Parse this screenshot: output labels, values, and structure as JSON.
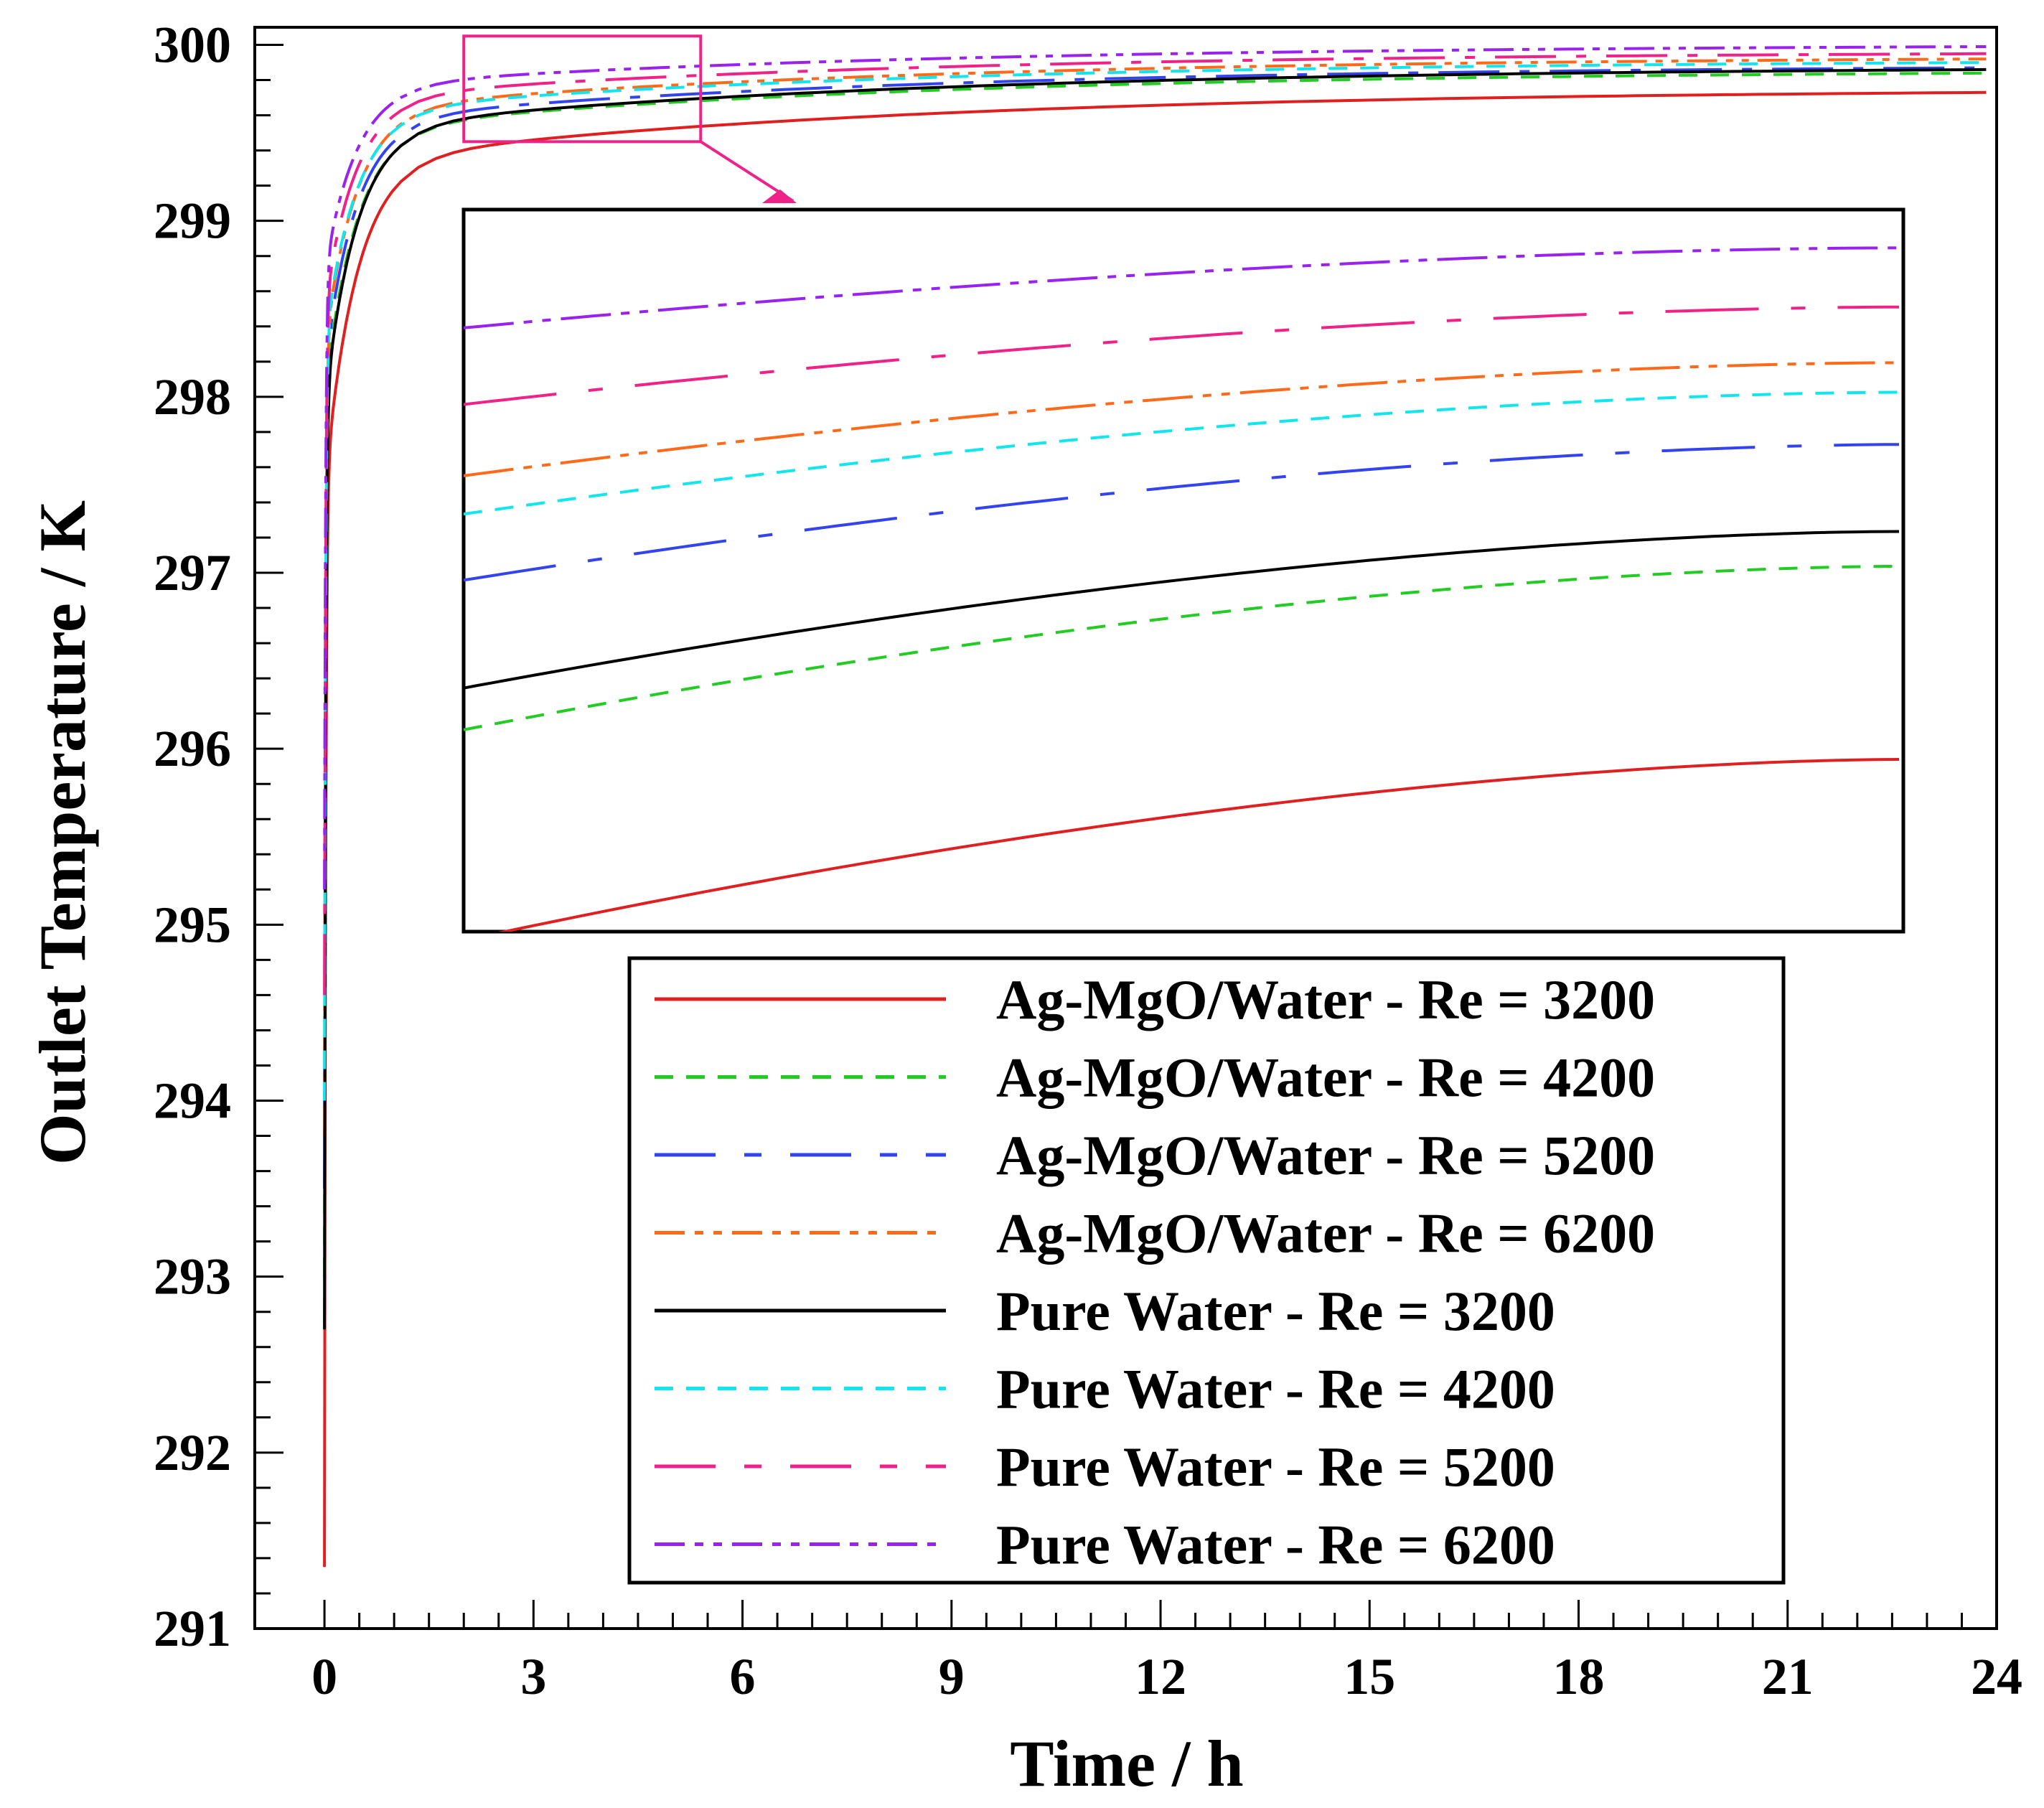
{
  "chart_data": {
    "type": "line",
    "title": "",
    "xlabel": "Time / h",
    "ylabel": "Outlet Temperature / K",
    "xlim": [
      -1.0,
      24
    ],
    "ylim": [
      291,
      300.1
    ],
    "xticks": [
      0,
      3,
      6,
      9,
      12,
      15,
      18,
      21,
      24
    ],
    "xtick_labels": [
      "0",
      "3",
      "6",
      "9",
      "12",
      "15",
      "18",
      "21",
      "24"
    ],
    "yticks": [
      291,
      292,
      293,
      294,
      295,
      296,
      297,
      298,
      299,
      300
    ],
    "ytick_labels": [
      "291",
      "292",
      "293",
      "294",
      "295",
      "296",
      "297",
      "298",
      "299",
      "300"
    ],
    "grid": false,
    "legend_position": "bottom-right",
    "series": [
      {
        "name": "Ag-MgO/Water - Re = 3200",
        "color": "#e02020",
        "dash": "solid",
        "start": 291.35,
        "final": 299.73,
        "inset_start": 294.85,
        "inset_end": 295.89
      },
      {
        "name": "Ag-MgO/Water - Re = 4200",
        "color": "#22cc22",
        "dash": "dash",
        "start": 293.0,
        "final": 299.84,
        "inset_start": 296.06,
        "inset_end": 297.0
      },
      {
        "name": "Ag-MgO/Water - Re = 5200",
        "color": "#3344ee",
        "dash": "longdash-dot",
        "start": 293.5,
        "final": 299.87,
        "inset_start": 296.92,
        "inset_end": 297.7
      },
      {
        "name": "Ag-MgO/Water - Re = 6200",
        "color": "#ff6a1a",
        "dash": "dash-dot-dot",
        "start": 293.8,
        "final": 299.92,
        "inset_start": 297.52,
        "inset_end": 298.17
      },
      {
        "name": "Pure Water - Re = 3200",
        "color": "#000000",
        "dash": "solid",
        "start": 292.7,
        "final": 299.86,
        "inset_start": 296.3,
        "inset_end": 297.2
      },
      {
        "name": "Pure Water - Re = 4200",
        "color": "#11e6ee",
        "dash": "dash",
        "start": 294.0,
        "final": 299.9,
        "inset_start": 297.3,
        "inset_end": 298.0
      },
      {
        "name": "Pure Water - Re = 5200",
        "color": "#ee2288",
        "dash": "longdash-dot",
        "start": 294.6,
        "final": 299.95,
        "inset_start": 297.93,
        "inset_end": 298.49
      },
      {
        "name": "Pure Water - Re = 6200",
        "color": "#9922ee",
        "dash": "dash-dot-dot",
        "start": 295.2,
        "final": 299.99,
        "inset_start": 298.37,
        "inset_end": 298.83
      }
    ],
    "zoom_box": {
      "x_range": [
        2.0,
        5.4
      ],
      "y_range": [
        299.45,
        300.05
      ],
      "color": "#ee2288"
    }
  }
}
